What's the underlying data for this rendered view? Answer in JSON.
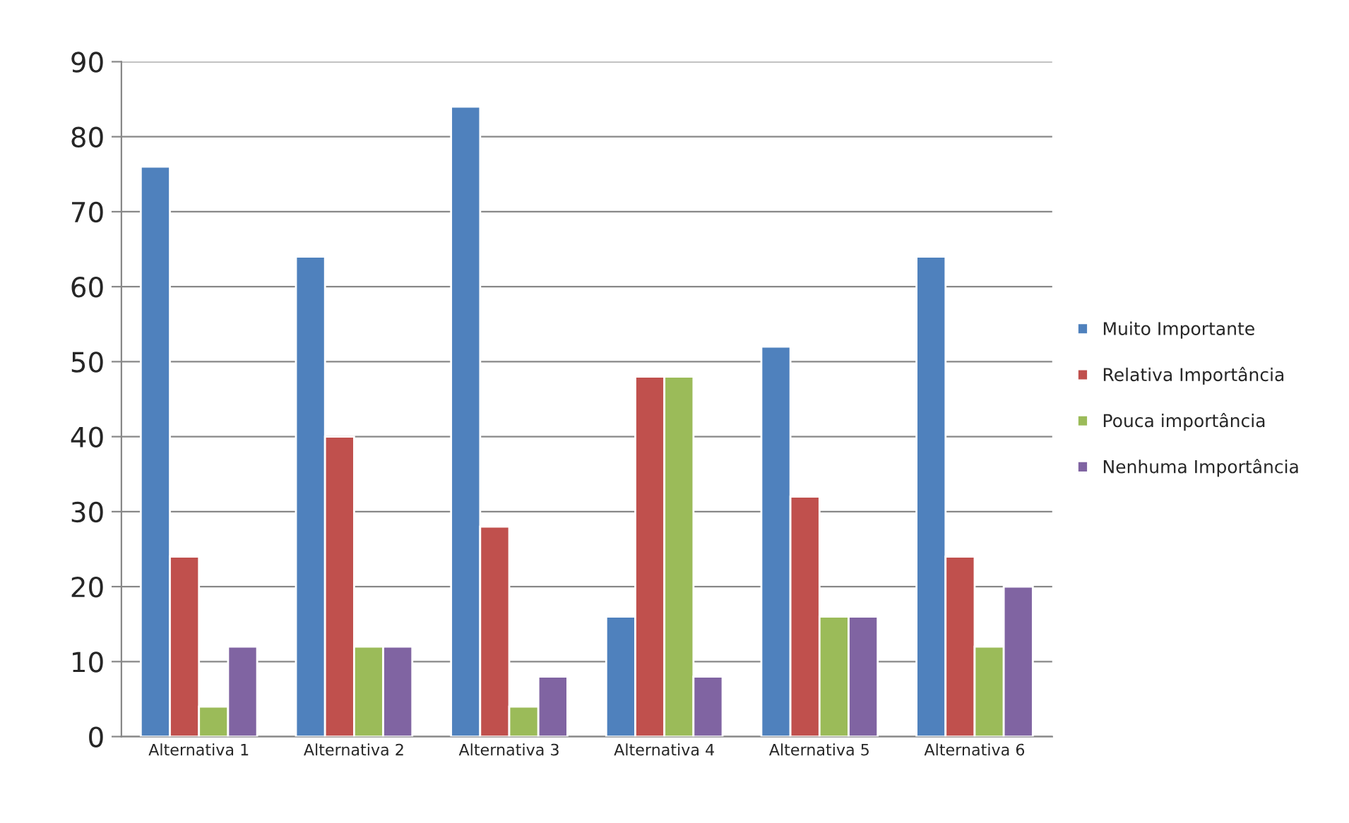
{
  "chart_data": {
    "type": "bar",
    "categories": [
      "Alternativa 1",
      "Alternativa 2",
      "Alternativa 3",
      "Alternativa 4",
      "Alternativa 5",
      "Alternativa 6"
    ],
    "series": [
      {
        "name": "Muito Importante",
        "color": "#4f81bd",
        "values": [
          76,
          64,
          84,
          16,
          52,
          64
        ]
      },
      {
        "name": "Relativa Importância",
        "color": "#c0504d",
        "values": [
          24,
          40,
          28,
          48,
          32,
          24
        ]
      },
      {
        "name": "Pouca importância",
        "color": "#9bbb59",
        "values": [
          4,
          12,
          4,
          48,
          16,
          12
        ]
      },
      {
        "name": "Nenhuma Importância",
        "color": "#8064a2",
        "values": [
          12,
          12,
          8,
          8,
          16,
          20
        ]
      }
    ],
    "ylim": [
      0,
      90
    ],
    "yticks": [
      0,
      10,
      20,
      30,
      40,
      50,
      60,
      70,
      80,
      90
    ],
    "grid": "y",
    "legend": "right"
  }
}
